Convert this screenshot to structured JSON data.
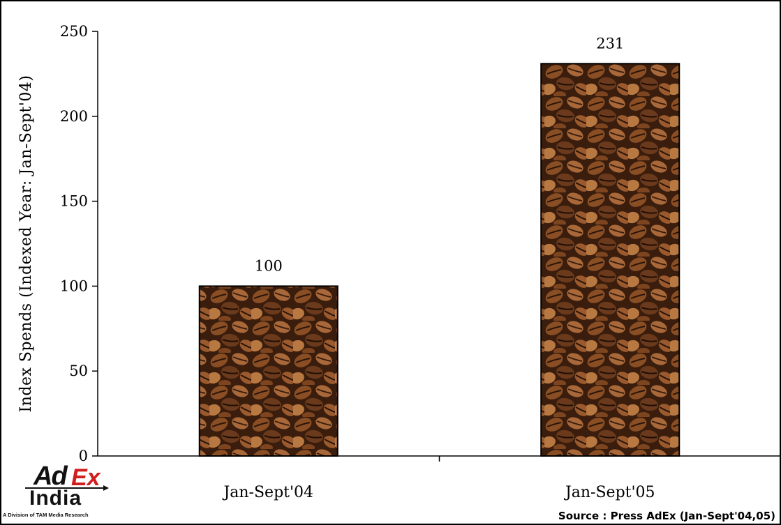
{
  "chart_data": {
    "type": "bar",
    "categories": [
      "Jan-Sept'04",
      "Jan-Sept'05"
    ],
    "values": [
      100,
      231
    ],
    "data_labels": [
      "100",
      "231"
    ],
    "ylabel": "Index Spends (Indexed Year: Jan-Sept'04)",
    "ylim": [
      0,
      250
    ],
    "yticks": [
      "0",
      "50",
      "100",
      "150",
      "200",
      "250"
    ],
    "grid": false,
    "bar_fill": "coffee-beans-texture"
  },
  "source": "Source : Press AdEx (Jan-Sept'04,05)",
  "logo": {
    "ad": "Ad",
    "ex": "Ex",
    "india": "India",
    "subtitle": "A Division of TAM Media Research"
  },
  "colors": {
    "axis": "#000000",
    "bean_dark": "#2a1408",
    "bean_mid": "#6b3a1c",
    "bean_light": "#b87842",
    "logo_red": "#d21d1d"
  }
}
